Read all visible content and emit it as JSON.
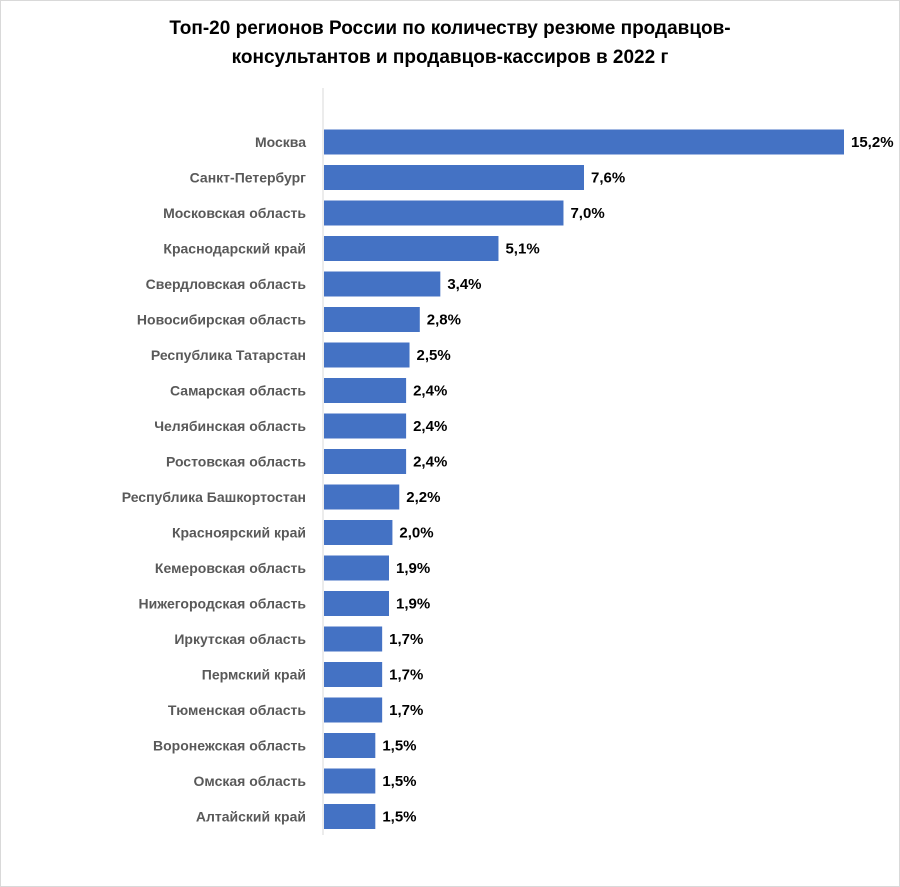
{
  "chart_data": {
    "type": "bar",
    "orientation": "horizontal",
    "title": "Топ-20 регионов России по количеству резюме продавцов-\nконсультантов и продавцов-кассиров  в 2022 г",
    "categories": [
      "Москва",
      "Санкт-Петербург",
      "Московская область",
      "Краснодарский край",
      "Свердловская область",
      "Новосибирская область",
      "Республика Татарстан",
      "Самарская область",
      "Челябинская область",
      "Ростовская  область",
      "Республика Башкортостан",
      "Красноярский край",
      "Кемеровская область",
      "Нижегородская область",
      "Иркутская  область",
      "Пермский край",
      "Тюменская область",
      "Воронежская область",
      "Омская область",
      "Алтайский край"
    ],
    "values": [
      15.2,
      7.6,
      7.0,
      5.1,
      3.4,
      2.8,
      2.5,
      2.4,
      2.4,
      2.4,
      2.2,
      2.0,
      1.9,
      1.9,
      1.7,
      1.7,
      1.7,
      1.5,
      1.5,
      1.5
    ],
    "value_labels": [
      "15,2%",
      "7,6%",
      "7,0%",
      "5,1%",
      "3,4%",
      "2,8%",
      "2,5%",
      "2,4%",
      "2,4%",
      "2,4%",
      "2,2%",
      "2,0%",
      "1,9%",
      "1,9%",
      "1,7%",
      "1,7%",
      "1,7%",
      "1,5%",
      "1,5%",
      "1,5%"
    ],
    "xlim": [
      0,
      15.2
    ],
    "grid": false,
    "legend": "none",
    "bar_color": "#4472c4",
    "axis_color": "#d9d9d9"
  }
}
